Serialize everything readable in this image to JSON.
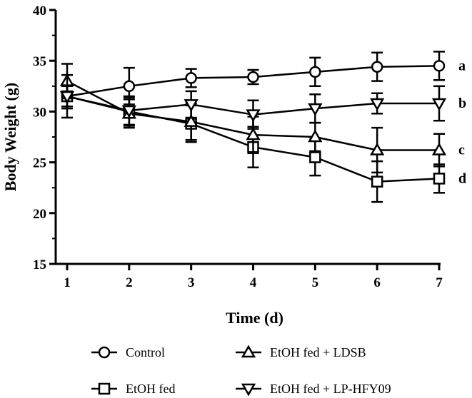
{
  "chart_data": {
    "type": "line",
    "title": "",
    "xlabel": "Time (d)",
    "ylabel": "Body Weight (g)",
    "x": [
      1,
      2,
      3,
      4,
      5,
      6,
      7
    ],
    "xlim": [
      1,
      7
    ],
    "ylim": [
      15,
      40
    ],
    "yticks": [
      15,
      20,
      25,
      30,
      35,
      40
    ],
    "grid": false,
    "legend_position": "bottom",
    "series": [
      {
        "name": "Control",
        "marker": "circle",
        "values": [
          31.5,
          32.5,
          33.3,
          33.4,
          33.9,
          34.4,
          34.5
        ],
        "errors": [
          1.2,
          1.8,
          0.9,
          0.7,
          1.4,
          1.4,
          1.4
        ],
        "significance": "a"
      },
      {
        "name": "EtOH fed",
        "marker": "square",
        "values": [
          31.5,
          30.0,
          28.8,
          26.5,
          25.5,
          23.1,
          23.4
        ],
        "errors": [
          1.0,
          1.4,
          1.8,
          2.0,
          1.8,
          2.0,
          1.4
        ],
        "significance": "d"
      },
      {
        "name": "EtOH fed + LDSB",
        "marker": "triangle-up",
        "values": [
          33.0,
          29.8,
          29.0,
          27.7,
          27.5,
          26.2,
          26.2
        ],
        "errors": [
          1.7,
          1.4,
          1.8,
          1.8,
          1.4,
          2.2,
          1.6
        ],
        "significance": "c"
      },
      {
        "name": "EtOH fed + LP-HFY09",
        "marker": "triangle-down",
        "values": [
          31.5,
          30.1,
          30.7,
          29.7,
          30.3,
          30.8,
          30.8
        ],
        "errors": [
          2.1,
          1.4,
          1.3,
          1.4,
          1.4,
          1.0,
          1.7
        ],
        "significance": "b"
      }
    ]
  }
}
